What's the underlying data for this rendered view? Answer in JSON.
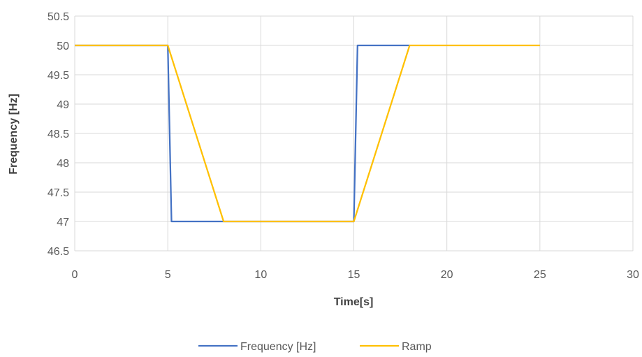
{
  "chart_data": {
    "type": "line",
    "xlabel": "Time[s]",
    "ylabel": "Frequency [Hz]",
    "xlim": [
      0,
      30
    ],
    "ylim": [
      46.5,
      50.5
    ],
    "x_ticks": [
      0,
      5,
      10,
      15,
      20,
      25,
      30
    ],
    "y_ticks": [
      46.5,
      47,
      47.5,
      48,
      48.5,
      49,
      49.5,
      50,
      50.5
    ],
    "grid": true,
    "legend_position": "bottom",
    "series": [
      {
        "name": "Frequency [Hz]",
        "color": "#4472C4",
        "points": [
          [
            0,
            50
          ],
          [
            5,
            50
          ],
          [
            5.2,
            47
          ],
          [
            8,
            47
          ],
          [
            15,
            47
          ],
          [
            15.2,
            50
          ],
          [
            18,
            50
          ]
        ]
      },
      {
        "name": "Ramp",
        "color": "#FFC000",
        "points": [
          [
            0,
            50
          ],
          [
            5,
            50
          ],
          [
            8,
            47
          ],
          [
            15,
            47
          ],
          [
            18,
            50
          ],
          [
            25,
            50
          ]
        ]
      }
    ]
  }
}
